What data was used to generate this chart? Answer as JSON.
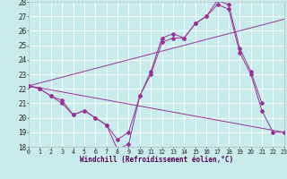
{
  "xlabel": "Windchill (Refroidissement éolien,°C)",
  "bg_color": "#c8ecec",
  "line_color": "#993399",
  "grid_color": "#ffffff",
  "xlim": [
    0,
    23
  ],
  "ylim": [
    18,
    28
  ],
  "xticks": [
    0,
    1,
    2,
    3,
    4,
    5,
    6,
    7,
    8,
    9,
    10,
    11,
    12,
    13,
    14,
    15,
    16,
    17,
    18,
    19,
    20,
    21,
    22,
    23
  ],
  "yticks": [
    18,
    19,
    20,
    21,
    22,
    23,
    24,
    25,
    26,
    27,
    28
  ],
  "curve1_x": [
    0,
    1,
    2,
    3,
    4,
    5,
    6,
    7,
    8,
    9,
    10,
    11,
    12,
    13,
    14,
    15,
    16,
    17,
    18,
    19,
    20,
    21
  ],
  "curve1_y": [
    22.2,
    22.0,
    21.5,
    21.0,
    20.2,
    20.5,
    20.0,
    19.5,
    17.8,
    18.2,
    21.5,
    23.2,
    25.5,
    25.8,
    25.5,
    26.5,
    27.0,
    28.1,
    27.8,
    24.8,
    23.2,
    21.0
  ],
  "curve2_x": [
    0,
    1,
    2,
    3,
    4,
    5,
    6,
    7,
    8,
    9,
    10,
    11,
    12,
    13,
    14,
    15,
    16,
    17,
    18,
    19,
    20,
    21,
    22,
    23
  ],
  "curve2_y": [
    22.2,
    22.0,
    21.5,
    21.2,
    20.2,
    20.5,
    20.0,
    19.5,
    18.5,
    19.0,
    21.5,
    23.0,
    25.2,
    25.5,
    25.5,
    26.5,
    27.0,
    27.8,
    27.5,
    24.5,
    23.0,
    20.5,
    19.0,
    19.0
  ],
  "line1_x": [
    0,
    23
  ],
  "line1_y": [
    22.2,
    26.8
  ],
  "line2_x": [
    0,
    23
  ],
  "line2_y": [
    22.2,
    19.0
  ]
}
